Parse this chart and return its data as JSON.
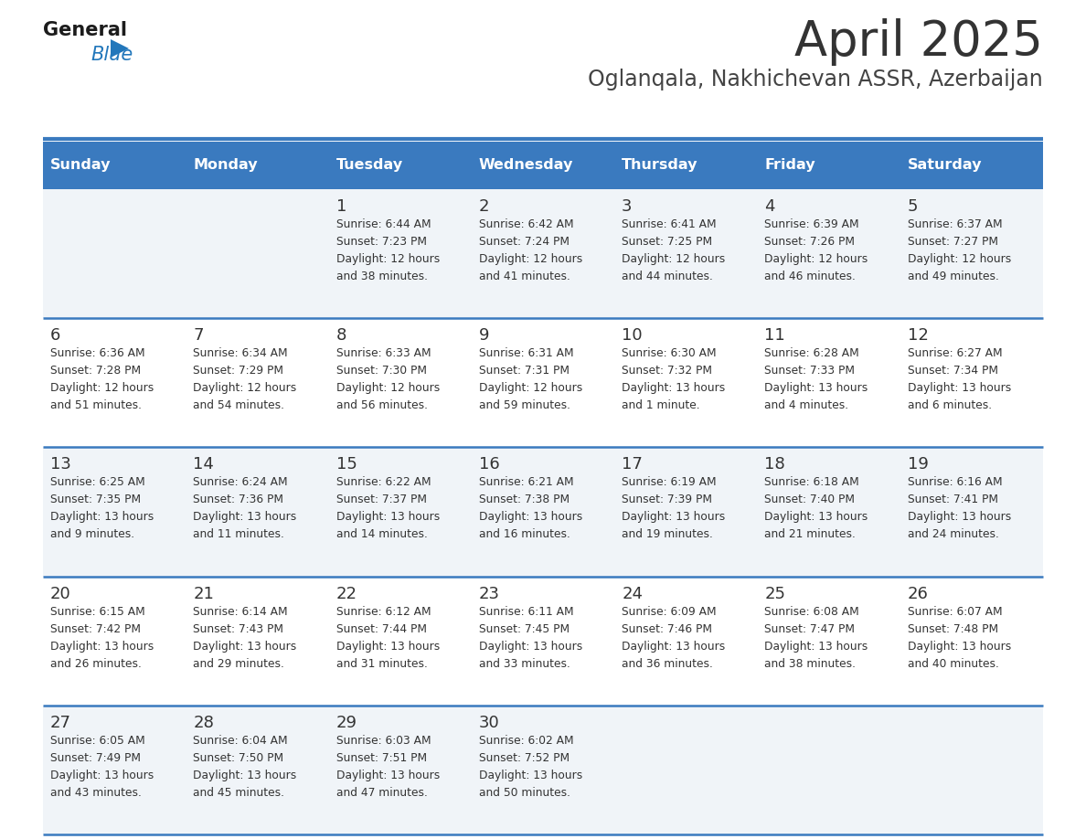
{
  "title": "April 2025",
  "subtitle": "Oglanqala, Nakhichevan ASSR, Azerbaijan",
  "days_of_week": [
    "Sunday",
    "Monday",
    "Tuesday",
    "Wednesday",
    "Thursday",
    "Friday",
    "Saturday"
  ],
  "header_bg": "#3a7abf",
  "header_text": "#ffffff",
  "cell_text": "#333333",
  "separator_color": "#3a7abf",
  "title_color": "#333333",
  "subtitle_color": "#444444",
  "row_bg_alt": "#f0f4f8",
  "row_bg_norm": "#ffffff",
  "calendar_data": [
    [
      null,
      null,
      {
        "day": 1,
        "sunrise": "6:44 AM",
        "sunset": "7:23 PM",
        "daylight": "12 hours and 38 minutes."
      },
      {
        "day": 2,
        "sunrise": "6:42 AM",
        "sunset": "7:24 PM",
        "daylight": "12 hours and 41 minutes."
      },
      {
        "day": 3,
        "sunrise": "6:41 AM",
        "sunset": "7:25 PM",
        "daylight": "12 hours and 44 minutes."
      },
      {
        "day": 4,
        "sunrise": "6:39 AM",
        "sunset": "7:26 PM",
        "daylight": "12 hours and 46 minutes."
      },
      {
        "day": 5,
        "sunrise": "6:37 AM",
        "sunset": "7:27 PM",
        "daylight": "12 hours and 49 minutes."
      }
    ],
    [
      {
        "day": 6,
        "sunrise": "6:36 AM",
        "sunset": "7:28 PM",
        "daylight": "12 hours and 51 minutes."
      },
      {
        "day": 7,
        "sunrise": "6:34 AM",
        "sunset": "7:29 PM",
        "daylight": "12 hours and 54 minutes."
      },
      {
        "day": 8,
        "sunrise": "6:33 AM",
        "sunset": "7:30 PM",
        "daylight": "12 hours and 56 minutes."
      },
      {
        "day": 9,
        "sunrise": "6:31 AM",
        "sunset": "7:31 PM",
        "daylight": "12 hours and 59 minutes."
      },
      {
        "day": 10,
        "sunrise": "6:30 AM",
        "sunset": "7:32 PM",
        "daylight": "13 hours and 1 minute."
      },
      {
        "day": 11,
        "sunrise": "6:28 AM",
        "sunset": "7:33 PM",
        "daylight": "13 hours and 4 minutes."
      },
      {
        "day": 12,
        "sunrise": "6:27 AM",
        "sunset": "7:34 PM",
        "daylight": "13 hours and 6 minutes."
      }
    ],
    [
      {
        "day": 13,
        "sunrise": "6:25 AM",
        "sunset": "7:35 PM",
        "daylight": "13 hours and 9 minutes."
      },
      {
        "day": 14,
        "sunrise": "6:24 AM",
        "sunset": "7:36 PM",
        "daylight": "13 hours and 11 minutes."
      },
      {
        "day": 15,
        "sunrise": "6:22 AM",
        "sunset": "7:37 PM",
        "daylight": "13 hours and 14 minutes."
      },
      {
        "day": 16,
        "sunrise": "6:21 AM",
        "sunset": "7:38 PM",
        "daylight": "13 hours and 16 minutes."
      },
      {
        "day": 17,
        "sunrise": "6:19 AM",
        "sunset": "7:39 PM",
        "daylight": "13 hours and 19 minutes."
      },
      {
        "day": 18,
        "sunrise": "6:18 AM",
        "sunset": "7:40 PM",
        "daylight": "13 hours and 21 minutes."
      },
      {
        "day": 19,
        "sunrise": "6:16 AM",
        "sunset": "7:41 PM",
        "daylight": "13 hours and 24 minutes."
      }
    ],
    [
      {
        "day": 20,
        "sunrise": "6:15 AM",
        "sunset": "7:42 PM",
        "daylight": "13 hours and 26 minutes."
      },
      {
        "day": 21,
        "sunrise": "6:14 AM",
        "sunset": "7:43 PM",
        "daylight": "13 hours and 29 minutes."
      },
      {
        "day": 22,
        "sunrise": "6:12 AM",
        "sunset": "7:44 PM",
        "daylight": "13 hours and 31 minutes."
      },
      {
        "day": 23,
        "sunrise": "6:11 AM",
        "sunset": "7:45 PM",
        "daylight": "13 hours and 33 minutes."
      },
      {
        "day": 24,
        "sunrise": "6:09 AM",
        "sunset": "7:46 PM",
        "daylight": "13 hours and 36 minutes."
      },
      {
        "day": 25,
        "sunrise": "6:08 AM",
        "sunset": "7:47 PM",
        "daylight": "13 hours and 38 minutes."
      },
      {
        "day": 26,
        "sunrise": "6:07 AM",
        "sunset": "7:48 PM",
        "daylight": "13 hours and 40 minutes."
      }
    ],
    [
      {
        "day": 27,
        "sunrise": "6:05 AM",
        "sunset": "7:49 PM",
        "daylight": "13 hours and 43 minutes."
      },
      {
        "day": 28,
        "sunrise": "6:04 AM",
        "sunset": "7:50 PM",
        "daylight": "13 hours and 45 minutes."
      },
      {
        "day": 29,
        "sunrise": "6:03 AM",
        "sunset": "7:51 PM",
        "daylight": "13 hours and 47 minutes."
      },
      {
        "day": 30,
        "sunrise": "6:02 AM",
        "sunset": "7:52 PM",
        "daylight": "13 hours and 50 minutes."
      },
      null,
      null,
      null
    ]
  ]
}
